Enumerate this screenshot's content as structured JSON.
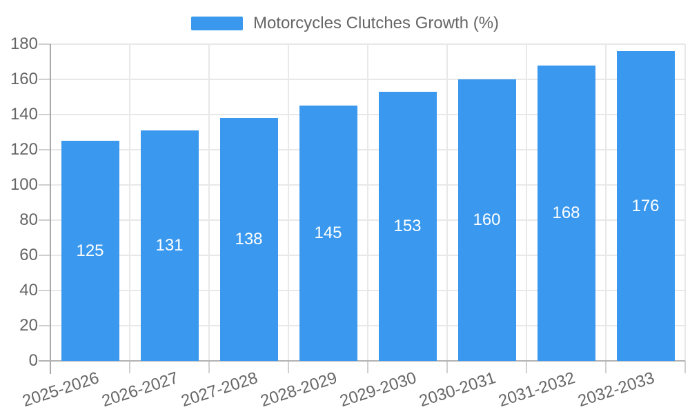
{
  "chart_data": {
    "type": "bar",
    "title": "Motorcycles Clutches Growth (%)",
    "legend_entries": [
      "Motorcycles Clutches Growth (%)"
    ],
    "legend_position": "top-center",
    "categories": [
      "2025-2026",
      "2026-2027",
      "2027-2028",
      "2028-2029",
      "2029-2030",
      "2030-2031",
      "2031-2032",
      "2032-2033"
    ],
    "values": [
      125,
      131,
      138,
      145,
      153,
      160,
      168,
      176
    ],
    "xlabel": "",
    "ylabel": "",
    "ylim": [
      0,
      180
    ],
    "yticks": [
      0,
      20,
      40,
      60,
      80,
      100,
      120,
      140,
      160,
      180
    ],
    "grid": true,
    "value_labels_position": "inside-center",
    "colors": {
      "bar": "#3a99ee",
      "value_label": "#ffffff",
      "axis_text": "#666666",
      "gridline": "#e8e8e8",
      "axis_line": "#a8a8a8",
      "baseline": "#b3b3b3",
      "tick": "#cfcfcf",
      "background": "#ffffff"
    }
  }
}
